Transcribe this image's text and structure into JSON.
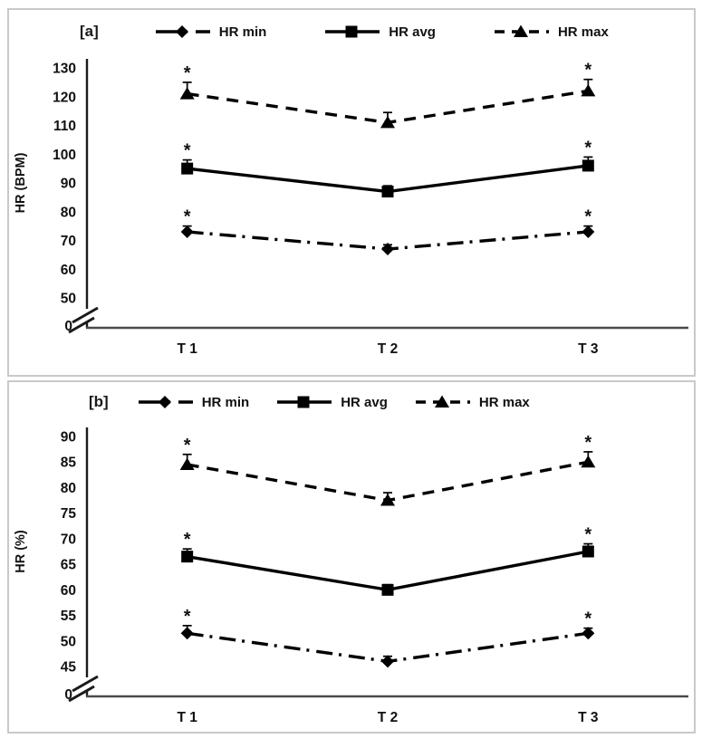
{
  "page": {
    "background": "#ffffff",
    "panel_border_color": "#c9c9c9",
    "axis_color": "#4a4a4a",
    "data_color": "#000000"
  },
  "chart_data": [
    {
      "type": "line",
      "panel_label": "[a]",
      "ylabel": "HR (BPM)",
      "xlabel": "",
      "categories": [
        "T 1",
        "T 2",
        "T 3"
      ],
      "y_ticks": [
        130,
        120,
        110,
        100,
        90,
        80,
        70,
        60,
        50
      ],
      "y_origin_label": "0",
      "y_axis_break": true,
      "ylim_top": 130,
      "ylim_bottom_tick": 50,
      "grid": false,
      "legend_position": "top",
      "significance_symbol": "*",
      "series": [
        {
          "name": "HR min",
          "marker": "diamond",
          "line_style": "dash-dot",
          "values": [
            73,
            67,
            73
          ],
          "errors": [
            2,
            1.5,
            2
          ],
          "significant": [
            true,
            false,
            true
          ]
        },
        {
          "name": "HR avg",
          "marker": "square",
          "line_style": "solid",
          "values": [
            95,
            87,
            96
          ],
          "errors": [
            3,
            2,
            3
          ],
          "significant": [
            true,
            false,
            true
          ]
        },
        {
          "name": "HR max",
          "marker": "triangle",
          "line_style": "dashed",
          "values": [
            121,
            111,
            122
          ],
          "errors": [
            4,
            3.5,
            4
          ],
          "significant": [
            true,
            false,
            true
          ]
        }
      ]
    },
    {
      "type": "line",
      "panel_label": "[b]",
      "ylabel": "HR (%)",
      "xlabel": "",
      "categories": [
        "T 1",
        "T 2",
        "T 3"
      ],
      "y_ticks": [
        90,
        85,
        80,
        75,
        70,
        65,
        60,
        55,
        50,
        45
      ],
      "y_origin_label": "0",
      "y_axis_break": true,
      "ylim_top": 90,
      "ylim_bottom_tick": 45,
      "grid": false,
      "legend_position": "top",
      "significance_symbol": "*",
      "series": [
        {
          "name": "HR min",
          "marker": "diamond",
          "line_style": "dash-dot",
          "values": [
            51.5,
            46,
            51.5
          ],
          "errors": [
            1.5,
            1,
            1
          ],
          "significant": [
            true,
            false,
            true
          ]
        },
        {
          "name": "HR avg",
          "marker": "square",
          "line_style": "solid",
          "values": [
            66.5,
            60,
            67.5
          ],
          "errors": [
            1.5,
            1,
            1.5
          ],
          "significant": [
            true,
            false,
            true
          ]
        },
        {
          "name": "HR max",
          "marker": "triangle",
          "line_style": "dashed",
          "values": [
            84.5,
            77.5,
            85
          ],
          "errors": [
            2,
            1.5,
            2
          ],
          "significant": [
            true,
            false,
            true
          ]
        }
      ]
    }
  ]
}
